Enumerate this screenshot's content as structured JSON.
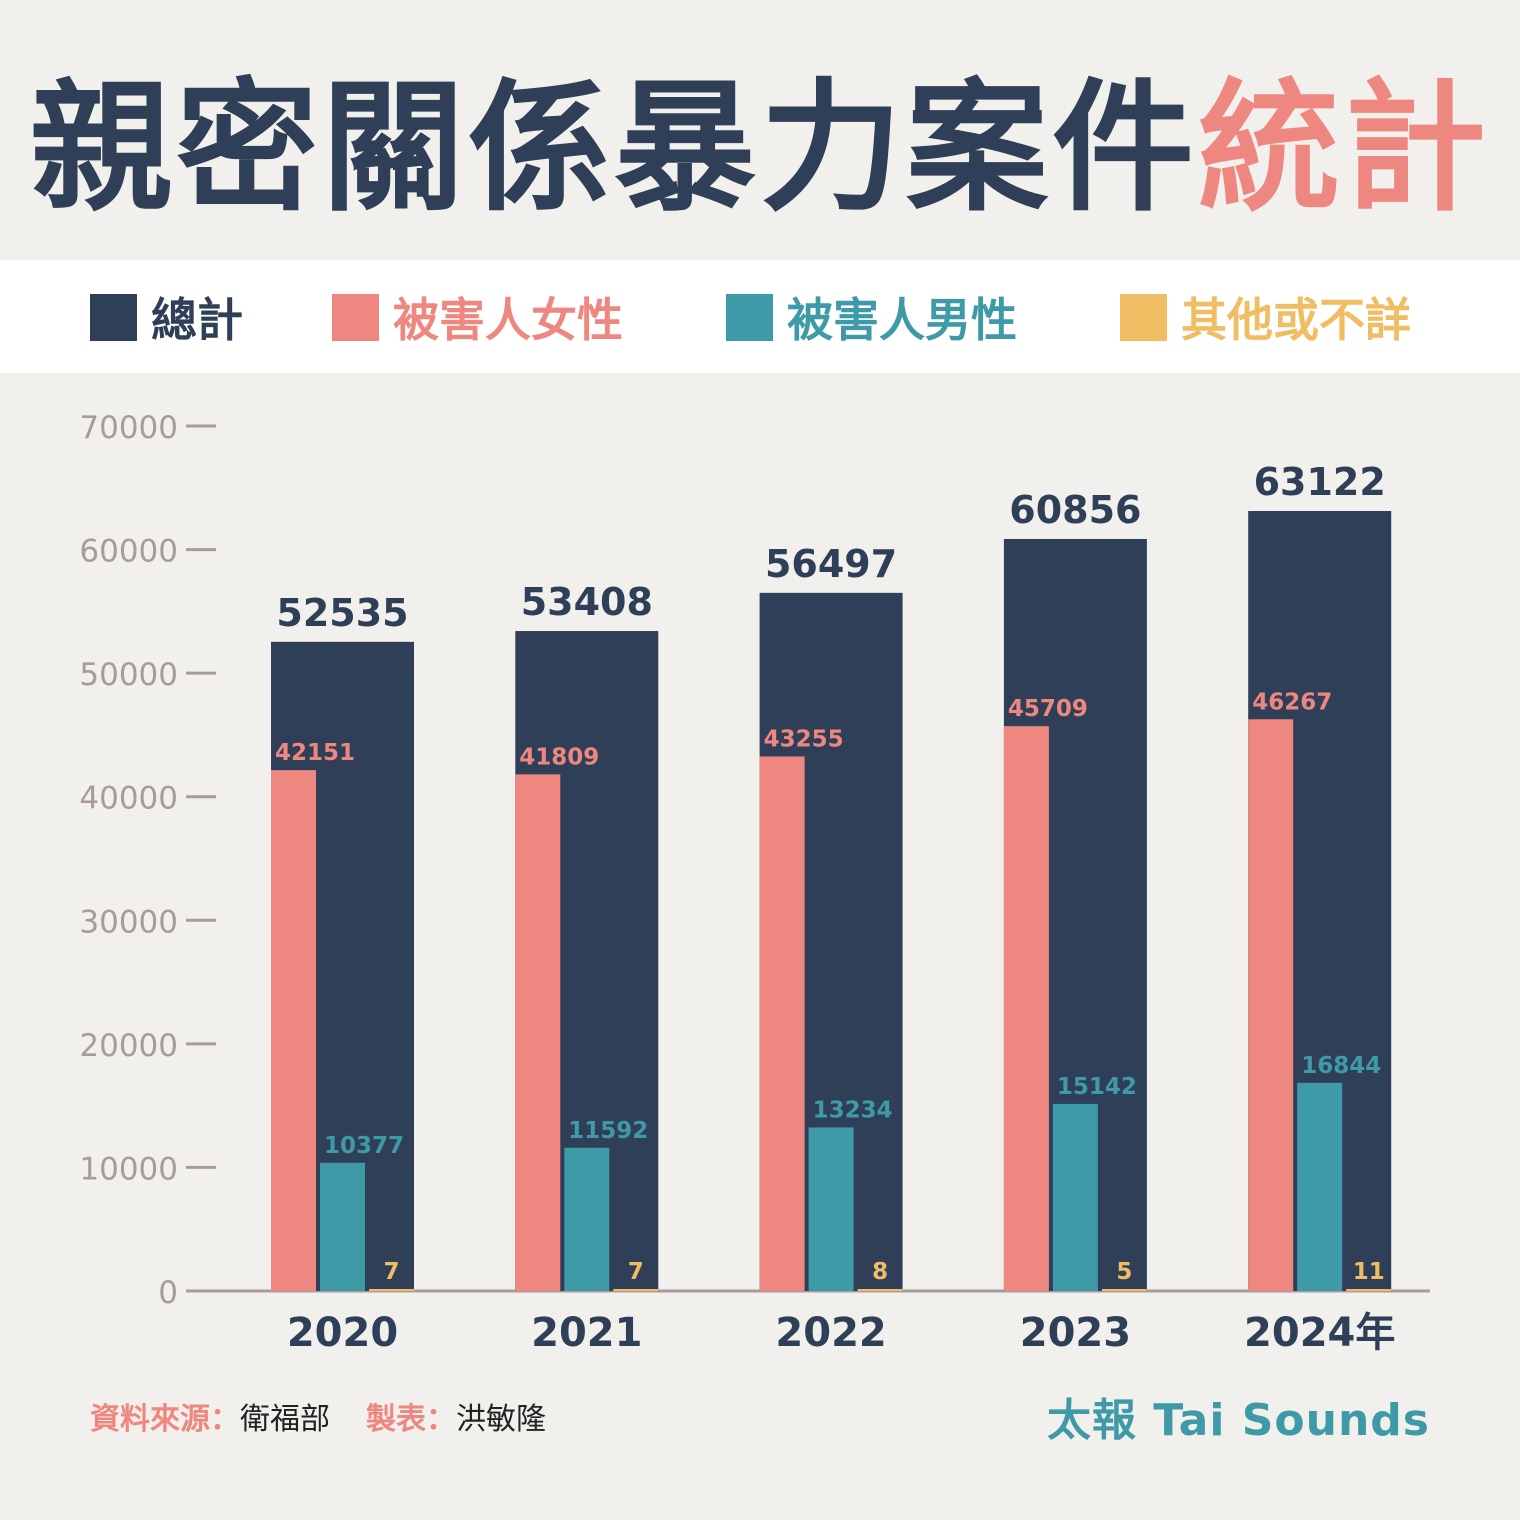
{
  "header": {
    "title_main": "親密關係暴力案件",
    "title_accent": "統計"
  },
  "legend": [
    {
      "label": "總計",
      "color": "#2f3f57"
    },
    {
      "label": "被害人女性",
      "color": "#ef8781"
    },
    {
      "label": "被害人男性",
      "color": "#3e9aa6"
    },
    {
      "label": "其他或不詳",
      "color": "#f0bd63"
    }
  ],
  "chart_data": {
    "type": "bar",
    "categories": [
      "2020",
      "2021",
      "2022",
      "2023",
      "2024年"
    ],
    "series": [
      {
        "name": "總計",
        "values": [
          52535,
          53408,
          56497,
          60856,
          63122
        ],
        "color": "#2f3f57"
      },
      {
        "name": "被害人女性",
        "values": [
          42151,
          41809,
          43255,
          45709,
          46267
        ],
        "color": "#ef8781"
      },
      {
        "name": "被害人男性",
        "values": [
          10377,
          11592,
          13234,
          15142,
          16844
        ],
        "color": "#3e9aa6"
      },
      {
        "name": "其他或不詳",
        "values": [
          7,
          7,
          8,
          5,
          11
        ],
        "color": "#f0bd63"
      }
    ],
    "ylim": [
      0,
      70000
    ],
    "yticks": [
      0,
      10000,
      20000,
      30000,
      40000,
      50000,
      60000,
      70000
    ],
    "grid": false,
    "legend_position": "top"
  },
  "footer": {
    "source_label": "資料來源：",
    "source_value": "衛福部",
    "maker_label": "製表：",
    "maker_value": "洪敏隆",
    "brand": "太報 Tai Sounds"
  }
}
